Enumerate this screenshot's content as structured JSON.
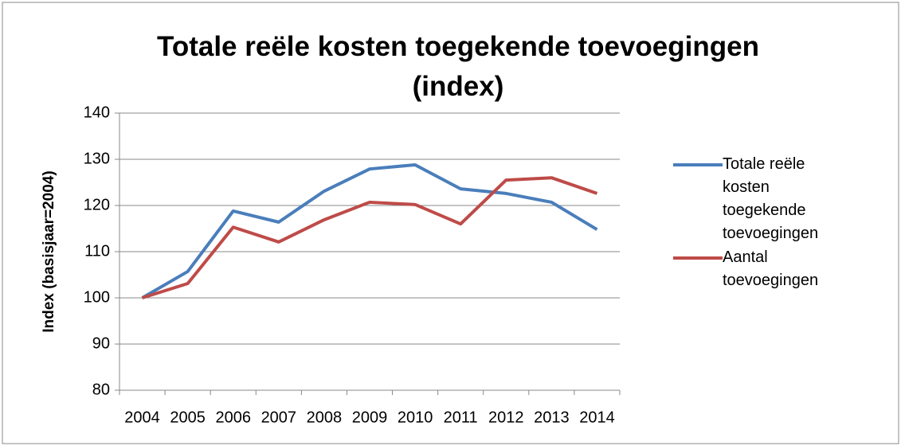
{
  "chart_data": {
    "type": "line",
    "title": "Totale reële kosten toegekende toevoegingen (index)",
    "y_label": "Index (basisjaar=2004)",
    "categories": [
      "2004",
      "2005",
      "2006",
      "2007",
      "2008",
      "2009",
      "2010",
      "2011",
      "2012",
      "2013",
      "2014"
    ],
    "series": [
      {
        "name": "Totale reële kosten toegekende toevoegingen",
        "color": "#4a7ebb",
        "values": [
          100,
          105.7,
          118.8,
          116.4,
          123.1,
          127.9,
          128.8,
          123.6,
          122.6,
          120.7,
          114.8
        ]
      },
      {
        "name": "Aantal toevoegingen",
        "color": "#be4b48",
        "values": [
          100,
          103.1,
          115.3,
          112.1,
          116.9,
          120.7,
          120.2,
          116.0,
          125.5,
          126.0,
          122.6
        ]
      }
    ],
    "ylim": [
      80,
      140
    ],
    "yticks": [
      80,
      90,
      100,
      110,
      120,
      130,
      140
    ],
    "grid": true,
    "legend": "right"
  }
}
